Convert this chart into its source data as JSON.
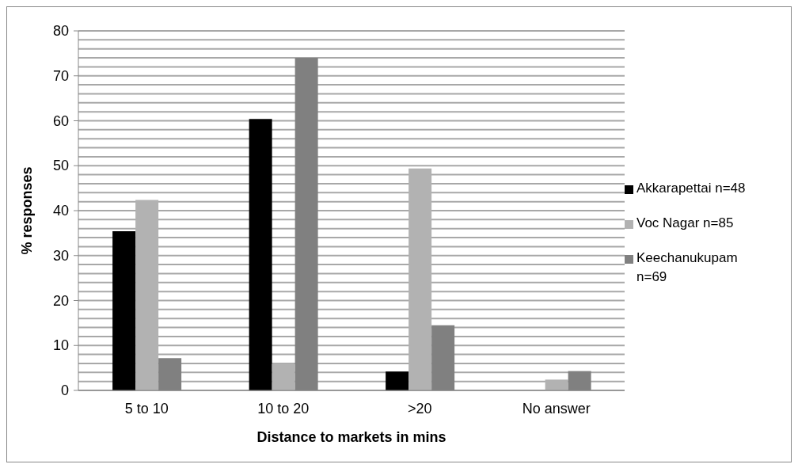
{
  "chart_data": {
    "type": "bar",
    "xlabel": "Distance to markets in mins",
    "ylabel": "% responses",
    "categories": [
      "5 to 10",
      "10 to 20",
      ">20",
      "No answer"
    ],
    "series": [
      {
        "name": "Akkarapettai n=48",
        "color": "#000000",
        "values": [
          35.4,
          60.4,
          4.2,
          0
        ]
      },
      {
        "name": "Voc Nagar n=85",
        "color": "#b2b2b2",
        "values": [
          42.4,
          6,
          49.4,
          2.4
        ]
      },
      {
        "name": "Keechanukupam n=69",
        "color": "#808080",
        "values": [
          7.2,
          74,
          14.5,
          4.3
        ]
      }
    ],
    "ylim": [
      0,
      80
    ],
    "yticks": [
      0,
      {
        "value": 2,
        "label": null
      },
      {
        "value": 4,
        "label": null
      },
      {
        "value": 6,
        "label": null
      },
      {
        "value": 8,
        "label": null
      },
      10,
      {
        "value": 12,
        "label": null
      },
      {
        "value": 14,
        "label": null
      },
      {
        "value": 16,
        "label": null
      },
      {
        "value": 18,
        "label": null
      },
      20,
      {
        "value": 22,
        "label": null
      },
      {
        "value": 24,
        "label": null
      },
      {
        "value": 26,
        "label": null
      },
      {
        "value": 28,
        "label": null
      },
      30,
      {
        "value": 32,
        "label": null
      },
      {
        "value": 34,
        "label": null
      },
      {
        "value": 36,
        "label": null
      },
      {
        "value": 38,
        "label": null
      },
      40,
      {
        "value": 42,
        "label": null
      },
      {
        "value": 44,
        "label": null
      },
      {
        "value": 46,
        "label": null
      },
      {
        "value": 48,
        "label": null
      },
      50,
      {
        "value": 52,
        "label": null
      },
      {
        "value": 54,
        "label": null
      },
      {
        "value": 56,
        "label": null
      },
      {
        "value": 58,
        "label": null
      },
      60,
      {
        "value": 62,
        "label": null
      },
      {
        "value": 64,
        "label": null
      },
      {
        "value": 66,
        "label": null
      },
      {
        "value": 68,
        "label": null
      },
      70,
      {
        "value": 72,
        "label": null
      },
      {
        "value": 74,
        "label": null
      },
      {
        "value": 76,
        "label": null
      },
      {
        "value": 78,
        "label": null
      },
      80
    ],
    "grid": "y",
    "legend": "right"
  }
}
